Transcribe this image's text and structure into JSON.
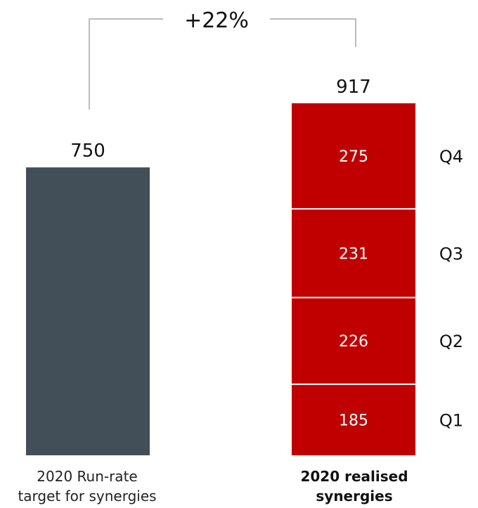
{
  "colors": {
    "target_bar": "#424f59",
    "realised_bar": "#c00000",
    "bracket_line": "#a6a6a6",
    "segment_divider": "#ffffff",
    "label_text": "#111111",
    "segment_text": "#ffffff"
  },
  "chart_data": {
    "type": "bar",
    "stacked": true,
    "categories": [
      "2020 Run-rate target for synergies",
      "2020 realised synergies"
    ],
    "series": [
      {
        "name": "Q1",
        "values": [
          750,
          185
        ]
      },
      {
        "name": "Q2",
        "values": [
          0,
          226
        ]
      },
      {
        "name": "Q3",
        "values": [
          0,
          231
        ]
      },
      {
        "name": "Q4",
        "values": [
          0,
          275
        ]
      }
    ],
    "totals": [
      "750",
      "917"
    ],
    "segment_labels": [
      "185",
      "226",
      "231",
      "275"
    ],
    "quarter_labels": [
      "Q1",
      "Q2",
      "Q3",
      "Q4"
    ],
    "annotation": "+22%",
    "ylim": [
      0,
      917
    ],
    "grid": false
  },
  "labels": {
    "target": {
      "line1": "2020 Run-rate",
      "line2": "target for synergies"
    },
    "realised": {
      "line1": "2020 realised",
      "line2": "synergies"
    }
  }
}
